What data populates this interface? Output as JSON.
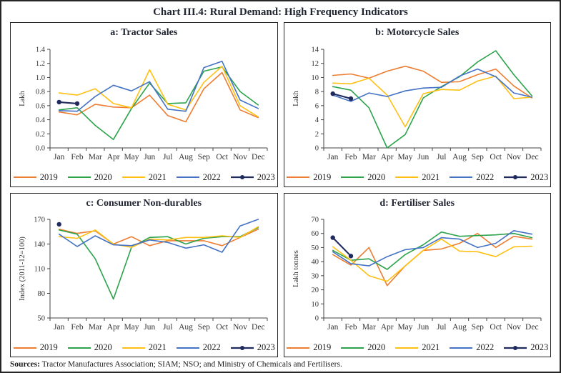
{
  "title": "Chart III.4: Rural Demand: High Frequency Indicators",
  "sources": {
    "label": "Sources:",
    "text": " Tractor Manufactures Association; SIAM; NSO; and Ministry of Chemicals and Fertilisers."
  },
  "months": [
    "Jan",
    "Feb",
    "Mar",
    "Apr",
    "May",
    "Jun",
    "Jul",
    "Aug",
    "Sep",
    "Oct",
    "Nov",
    "Dec"
  ],
  "colors": {
    "y2019": "#ED7D31",
    "y2020": "#2CA34B",
    "y2021": "#FFC013",
    "y2022": "#4472C4",
    "y2023": "#1F2A5E"
  },
  "chart_data": [
    {
      "type": "line",
      "title": "a: Tractor Sales",
      "ylabel": "Lakh",
      "ylim": [
        0.0,
        1.4
      ],
      "ytick_step": 0.2,
      "ydecimals": 1,
      "legend_position": "bottom",
      "grid": false,
      "series": [
        {
          "name": "2019",
          "color": "#ED7D31",
          "marker": false,
          "values": [
            0.51,
            0.47,
            0.62,
            0.58,
            0.57,
            0.75,
            0.46,
            0.37,
            0.84,
            1.07,
            0.54,
            0.43
          ]
        },
        {
          "name": "2020",
          "color": "#2CA34B",
          "marker": false,
          "values": [
            0.54,
            0.57,
            0.32,
            0.12,
            0.56,
            0.92,
            0.63,
            0.64,
            1.09,
            1.15,
            0.8,
            0.61
          ]
        },
        {
          "name": "2021",
          "color": "#FFC013",
          "marker": false,
          "values": [
            0.78,
            0.75,
            0.84,
            0.63,
            0.57,
            1.11,
            0.62,
            0.54,
            0.93,
            1.16,
            0.6,
            0.44
          ]
        },
        {
          "name": "2022",
          "color": "#4472C4",
          "marker": false,
          "values": [
            0.53,
            0.52,
            0.73,
            0.89,
            0.81,
            0.94,
            0.55,
            0.52,
            1.14,
            1.23,
            0.68,
            0.56
          ]
        },
        {
          "name": "2023",
          "color": "#1F2A5E",
          "marker": true,
          "values": [
            0.65,
            0.63
          ]
        }
      ]
    },
    {
      "type": "line",
      "title": "b: Motorcycle Sales",
      "ylabel": "Lakh",
      "ylim": [
        0,
        14
      ],
      "ytick_step": 2,
      "ydecimals": 0,
      "legend_position": "bottom",
      "grid": false,
      "series": [
        {
          "name": "2019",
          "color": "#ED7D31",
          "marker": false,
          "values": [
            10.3,
            10.5,
            9.9,
            10.9,
            11.6,
            10.9,
            9.3,
            9.4,
            10.4,
            11.2,
            8.8,
            7.1
          ]
        },
        {
          "name": "2020",
          "color": "#2CA34B",
          "marker": false,
          "values": [
            8.7,
            8.2,
            5.7,
            0.0,
            1.9,
            7.1,
            8.7,
            10.1,
            12.2,
            13.8,
            10.4,
            7.4
          ]
        },
        {
          "name": "2021",
          "color": "#FFC013",
          "marker": false,
          "values": [
            9.2,
            9.1,
            9.9,
            7.5,
            3.0,
            7.7,
            8.3,
            8.2,
            9.5,
            10.2,
            7.0,
            7.2
          ]
        },
        {
          "name": "2022",
          "color": "#4472C4",
          "marker": false,
          "values": [
            7.5,
            6.6,
            7.8,
            7.3,
            8.1,
            8.5,
            8.6,
            10.2,
            11.2,
            10.1,
            7.8,
            7.2
          ]
        },
        {
          "name": "2023",
          "color": "#1F2A5E",
          "marker": true,
          "values": [
            7.7,
            7.0
          ]
        }
      ]
    },
    {
      "type": "line",
      "title": "c: Consumer Non-durables",
      "ylabel": "Index (2011-12=100)",
      "ylim": [
        50,
        170
      ],
      "ytick_step": 30,
      "ydecimals": 0,
      "legend_position": "bottom",
      "grid": false,
      "series": [
        {
          "name": "2019",
          "color": "#ED7D31",
          "marker": false,
          "values": [
            158,
            153,
            156,
            140,
            149,
            138,
            144,
            144,
            144,
            138,
            148,
            158
          ]
        },
        {
          "name": "2020",
          "color": "#2CA34B",
          "marker": false,
          "values": [
            157,
            152,
            122,
            73,
            136,
            148,
            149,
            140,
            147,
            149,
            149,
            160
          ]
        },
        {
          "name": "2021",
          "color": "#FFC013",
          "marker": false,
          "values": [
            149,
            147,
            157,
            140,
            136,
            146,
            145,
            148,
            148,
            150,
            148,
            161
          ]
        },
        {
          "name": "2022",
          "color": "#4472C4",
          "marker": false,
          "values": [
            152,
            137,
            150,
            139,
            138,
            145,
            142,
            135,
            139,
            130,
            162,
            170
          ]
        },
        {
          "name": "2023",
          "color": "#1F2A5E",
          "marker": true,
          "values": [
            164
          ]
        }
      ]
    },
    {
      "type": "line",
      "title": "d: Fertiliser Sales",
      "ylabel": "Lakh tonnes",
      "ylim": [
        0,
        70
      ],
      "ytick_step": 10,
      "ydecimals": 0,
      "legend_position": "bottom",
      "grid": false,
      "series": [
        {
          "name": "2019",
          "color": "#ED7D31",
          "marker": false,
          "values": [
            45,
            37.5,
            50,
            23,
            37,
            48,
            49,
            53,
            60,
            50,
            58,
            56
          ]
        },
        {
          "name": "2020",
          "color": "#2CA34B",
          "marker": false,
          "values": [
            48,
            41,
            42,
            34.5,
            45,
            52,
            61,
            58,
            58.5,
            59,
            60,
            57
          ]
        },
        {
          "name": "2021",
          "color": "#FFC013",
          "marker": false,
          "values": [
            50.5,
            41,
            30,
            26,
            37,
            48,
            56,
            47.5,
            47,
            43.5,
            50.5,
            51
          ]
        },
        {
          "name": "2022",
          "color": "#4472C4",
          "marker": false,
          "values": [
            47,
            38.5,
            37,
            43.5,
            48.5,
            50,
            57,
            56,
            50,
            53,
            62,
            59.5
          ]
        },
        {
          "name": "2023",
          "color": "#1F2A5E",
          "marker": true,
          "values": [
            57,
            44
          ]
        }
      ]
    }
  ]
}
